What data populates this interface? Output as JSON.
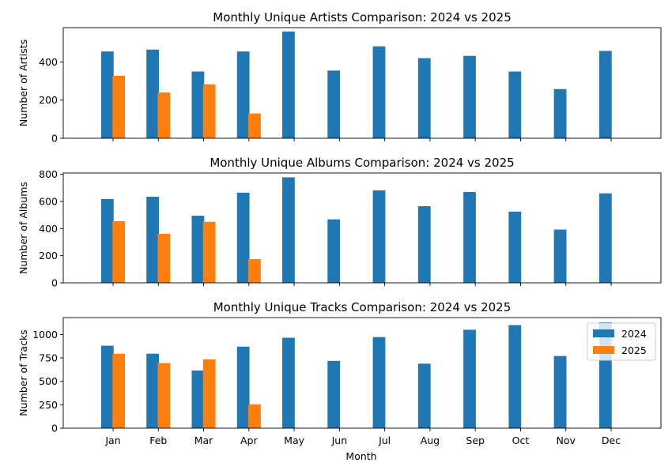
{
  "colors": {
    "series_2024": "#1f77b4",
    "series_2025": "#ff7f0e"
  },
  "xlabel": "Month",
  "legend": {
    "placement": "top-right",
    "entries": [
      "2024",
      "2025"
    ]
  },
  "chart_data": [
    {
      "type": "bar",
      "title": "Monthly Unique Artists Comparison: 2024 vs 2025",
      "xlabel": "",
      "ylabel": "Number of Artists",
      "categories": [
        "Jan",
        "Feb",
        "Mar",
        "Apr",
        "May",
        "Jun",
        "Jul",
        "Aug",
        "Sep",
        "Oct",
        "Nov",
        "Dec"
      ],
      "series": [
        {
          "name": "2024",
          "values": [
            455,
            465,
            350,
            455,
            560,
            355,
            482,
            420,
            432,
            350,
            258,
            458
          ]
        },
        {
          "name": "2025",
          "values": [
            328,
            240,
            283,
            130,
            null,
            null,
            null,
            null,
            null,
            null,
            null,
            null
          ]
        }
      ],
      "ylim": [
        0,
        580
      ],
      "yticks": [
        0,
        200,
        400
      ],
      "show_xticklabels": false,
      "legend": false
    },
    {
      "type": "bar",
      "title": "Monthly Unique Albums Comparison: 2024 vs 2025",
      "xlabel": "",
      "ylabel": "Number of Albums",
      "categories": [
        "Jan",
        "Feb",
        "Mar",
        "Apr",
        "May",
        "Jun",
        "Jul",
        "Aug",
        "Sep",
        "Oct",
        "Nov",
        "Dec"
      ],
      "series": [
        {
          "name": "2024",
          "values": [
            618,
            635,
            495,
            665,
            778,
            468,
            682,
            565,
            670,
            525,
            393,
            660
          ]
        },
        {
          "name": "2025",
          "values": [
            455,
            362,
            450,
            175,
            null,
            null,
            null,
            null,
            null,
            null,
            null,
            null
          ]
        }
      ],
      "ylim": [
        0,
        810
      ],
      "yticks": [
        0,
        200,
        400,
        600,
        800
      ],
      "show_xticklabels": false,
      "legend": false
    },
    {
      "type": "bar",
      "title": "Monthly Unique Tracks Comparison: 2024 vs 2025",
      "xlabel": "Month",
      "ylabel": "Number of Tracks",
      "categories": [
        "Jan",
        "Feb",
        "Mar",
        "Apr",
        "May",
        "Jun",
        "Jul",
        "Aug",
        "Sep",
        "Oct",
        "Nov",
        "Dec"
      ],
      "series": [
        {
          "name": "2024",
          "values": [
            880,
            795,
            615,
            870,
            965,
            718,
            972,
            688,
            1050,
            1100,
            770,
            1130
          ]
        },
        {
          "name": "2025",
          "values": [
            795,
            695,
            735,
            255,
            null,
            null,
            null,
            null,
            null,
            null,
            null,
            null
          ]
        }
      ],
      "ylim": [
        0,
        1180
      ],
      "yticks": [
        0,
        250,
        500,
        750,
        1000
      ],
      "show_xticklabels": true,
      "legend": true
    }
  ]
}
